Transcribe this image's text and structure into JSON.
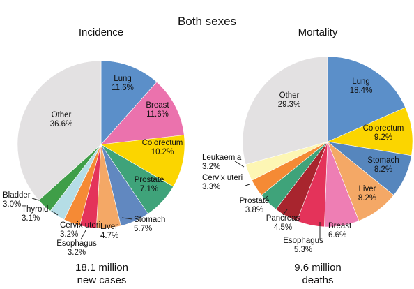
{
  "title": "Both sexes",
  "chart_data": [
    {
      "type": "pie",
      "title": "Incidence",
      "caption_line1": "18.1 million",
      "caption_line2": "new cases",
      "slices": [
        {
          "name": "Lung",
          "value": 11.6,
          "pct": "11.6%",
          "color": "#5b8fc9"
        },
        {
          "name": "Breast",
          "value": 11.6,
          "pct": "11.6%",
          "color": "#eb72ad"
        },
        {
          "name": "Colorectum",
          "value": 10.2,
          "pct": "10.2%",
          "color": "#fbd500"
        },
        {
          "name": "Prostate",
          "value": 7.1,
          "pct": "7.1%",
          "color": "#3fa37a"
        },
        {
          "name": "Stomach",
          "value": 5.7,
          "pct": "5.7%",
          "color": "#6188c0"
        },
        {
          "name": "Liver",
          "value": 4.7,
          "pct": "4.7%",
          "color": "#f4a866"
        },
        {
          "name": "Esophagus",
          "value": 3.2,
          "pct": "3.2%",
          "color": "#e4335a"
        },
        {
          "name": "Cervix uteri",
          "value": 3.2,
          "pct": "3.2%",
          "color": "#f58a35"
        },
        {
          "name": "Thyroid",
          "value": 3.1,
          "pct": "3.1%",
          "color": "#b5dde6"
        },
        {
          "name": "Bladder",
          "value": 3.0,
          "pct": "3.0%",
          "color": "#3f9e48"
        },
        {
          "name": "Other",
          "value": 36.6,
          "pct": "36.6%",
          "color": "#e3e1e2"
        }
      ]
    },
    {
      "type": "pie",
      "title": "Mortality",
      "caption_line1": "9.6 million",
      "caption_line2": "deaths",
      "slices": [
        {
          "name": "Lung",
          "value": 18.4,
          "pct": "18.4%",
          "color": "#5b8fc9"
        },
        {
          "name": "Colorectum",
          "value": 9.2,
          "pct": "9.2%",
          "color": "#fbd500"
        },
        {
          "name": "Stomach",
          "value": 8.2,
          "pct": "8.2%",
          "color": "#5686bd"
        },
        {
          "name": "Liver",
          "value": 8.2,
          "pct": "8.2%",
          "color": "#f4a866"
        },
        {
          "name": "Breast",
          "value": 6.6,
          "pct": "6.6%",
          "color": "#ee7eb4"
        },
        {
          "name": "Esophagus",
          "value": 5.3,
          "pct": "5.3%",
          "color": "#e4335a"
        },
        {
          "name": "Pancreas",
          "value": 4.5,
          "pct": "4.5%",
          "color": "#a8252e"
        },
        {
          "name": "Prostate",
          "value": 3.8,
          "pct": "3.8%",
          "color": "#3fa37a"
        },
        {
          "name": "Cervix uteri",
          "value": 3.3,
          "pct": "3.3%",
          "color": "#f58a35"
        },
        {
          "name": "Leukaemia",
          "value": 3.2,
          "pct": "3.2%",
          "color": "#fdf6b4"
        },
        {
          "name": "Other",
          "value": 29.3,
          "pct": "29.3%",
          "color": "#e3e1e2"
        }
      ]
    }
  ]
}
